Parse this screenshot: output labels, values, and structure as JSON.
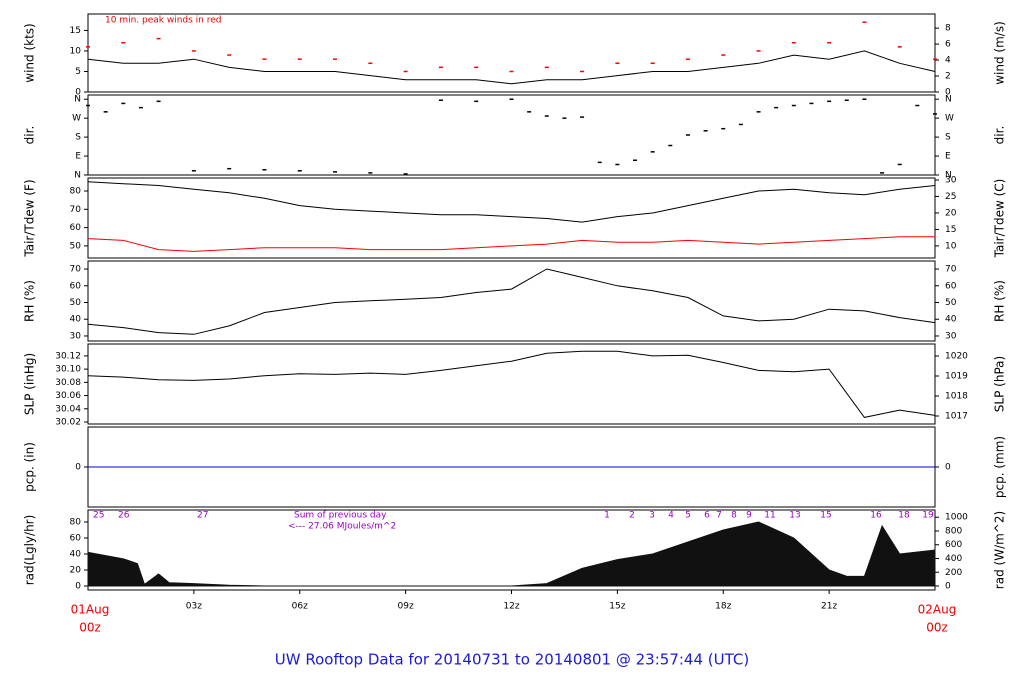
{
  "title": "UW Rooftop Data for 20140731  to  20140801 @ 23:57:44  (UTC)",
  "chart_data": [
    {
      "type": "line",
      "ylabel": "wind (kts)",
      "y2label": "wind (m/s)",
      "annotation": "10 min. peak winds in red",
      "x": [
        0,
        1,
        2,
        3,
        4,
        5,
        6,
        7,
        8,
        9,
        10,
        11,
        12,
        13,
        14,
        15,
        16,
        17,
        18,
        19,
        20,
        21,
        22,
        23,
        24
      ],
      "xlim": [
        0,
        24
      ],
      "ylim": [
        0,
        19
      ],
      "yticks": [
        0,
        5,
        10,
        15
      ],
      "y2lim": [
        0,
        9.77
      ],
      "y2ticks": [
        0,
        2,
        4,
        6,
        8
      ],
      "series": [
        {
          "color": "#000000",
          "values": [
            8,
            7,
            7,
            8,
            6,
            5,
            5,
            5,
            4,
            3,
            3,
            3,
            2,
            3,
            3,
            4,
            5,
            5,
            6,
            7,
            9,
            8,
            10,
            7,
            5
          ]
        },
        {
          "color": "#ff0000",
          "style": "dash",
          "values": [
            11,
            12,
            13,
            10,
            9,
            8,
            8,
            8,
            7,
            5,
            6,
            6,
            5,
            6,
            5,
            7,
            7,
            8,
            9,
            10,
            12,
            12,
            17,
            11,
            8
          ]
        }
      ]
    },
    {
      "type": "scatter",
      "ylabel": "dir.",
      "y2label": "dir.",
      "x": [
        0,
        0.5,
        1,
        1.5,
        2,
        3,
        4,
        5,
        6,
        7,
        8,
        9,
        10,
        11,
        12,
        12.5,
        13,
        13.5,
        14,
        14.5,
        15,
        15.5,
        16,
        16.5,
        17,
        17.5,
        18,
        18.5,
        19,
        19.5,
        20,
        20.5,
        21,
        21.5,
        22,
        22.5,
        23,
        23.5,
        24
      ],
      "xlim": [
        0,
        24
      ],
      "ylim": [
        0,
        380
      ],
      "yticks": [
        {
          "value": 0,
          "label": "N"
        },
        {
          "value": 90,
          "label": "E"
        },
        {
          "value": 180,
          "label": "S"
        },
        {
          "value": 270,
          "label": "W"
        },
        {
          "value": 360,
          "label": "N"
        }
      ],
      "y2lim": [
        0,
        380
      ],
      "y2ticks": [
        {
          "value": 0,
          "label": "N"
        },
        {
          "value": 90,
          "label": "E"
        },
        {
          "value": 180,
          "label": "S"
        },
        {
          "value": 270,
          "label": "W"
        },
        {
          "value": 360,
          "label": "N"
        }
      ],
      "series": [
        {
          "color": "#000000",
          "values": [
            330,
            300,
            340,
            320,
            350,
            20,
            30,
            25,
            20,
            15,
            10,
            5,
            355,
            350,
            360,
            300,
            280,
            270,
            275,
            60,
            50,
            70,
            110,
            140,
            190,
            210,
            220,
            240,
            300,
            320,
            330,
            340,
            350,
            355,
            360,
            10,
            50,
            330,
            290
          ]
        }
      ]
    },
    {
      "type": "line",
      "ylabel": "Tair/Tdew (F)",
      "y2label": "Tair/Tdew (C)",
      "x": [
        0,
        1,
        2,
        3,
        4,
        5,
        6,
        7,
        8,
        9,
        10,
        11,
        12,
        13,
        14,
        15,
        16,
        17,
        18,
        19,
        20,
        21,
        22,
        23,
        24
      ],
      "xlim": [
        0,
        24
      ],
      "ylim": [
        43.4,
        87.1
      ],
      "yticks": [
        50,
        60,
        70,
        80
      ],
      "y2lim": [
        6.33,
        30.6
      ],
      "y2ticks": [
        10,
        15,
        20,
        25,
        30
      ],
      "series": [
        {
          "color": "#000000",
          "values": [
            85,
            84,
            83,
            81,
            79,
            76,
            72,
            70,
            69,
            68,
            67,
            67,
            66,
            65,
            63,
            66,
            68,
            72,
            76,
            80,
            81,
            79,
            78,
            81,
            83
          ]
        },
        {
          "color": "#ff0000",
          "values": [
            54,
            53,
            48,
            47,
            48,
            49,
            49,
            49,
            48,
            48,
            48,
            49,
            50,
            51,
            53,
            52,
            52,
            53,
            52,
            51,
            52,
            53,
            54,
            55,
            55
          ]
        }
      ]
    },
    {
      "type": "line",
      "ylabel": "RH (%)",
      "y2label": "RH (%)",
      "x": [
        0,
        1,
        2,
        3,
        4,
        5,
        6,
        7,
        8,
        9,
        10,
        11,
        12,
        13,
        14,
        15,
        16,
        17,
        18,
        19,
        20,
        21,
        22,
        23,
        24
      ],
      "xlim": [
        0,
        24
      ],
      "ylim": [
        27,
        74.8
      ],
      "yticks": [
        30,
        40,
        50,
        60,
        70
      ],
      "y2lim": [
        27,
        74.8
      ],
      "y2ticks": [
        30,
        40,
        50,
        60,
        70
      ],
      "series": [
        {
          "color": "#000000",
          "values": [
            37,
            35,
            32,
            31,
            36,
            44,
            47,
            50,
            51,
            52,
            53,
            56,
            58,
            70,
            65,
            60,
            57,
            53,
            42,
            39,
            40,
            46,
            45,
            41,
            38
          ]
        }
      ]
    },
    {
      "type": "line",
      "ylabel": "SLP (inHg)",
      "y2label": "SLP (hPa)",
      "x": [
        0,
        1,
        2,
        3,
        4,
        5,
        6,
        7,
        8,
        9,
        10,
        11,
        12,
        13,
        14,
        15,
        16,
        17,
        18,
        19,
        20,
        21,
        22,
        23,
        24
      ],
      "xlim": [
        0,
        24
      ],
      "ylim": [
        30.017,
        30.138
      ],
      "yticks": [
        {
          "value": 30.02,
          "label": "30.02"
        },
        30.04,
        30.06,
        30.08,
        {
          "value": 30.1,
          "label": "30.10"
        },
        30.12
      ],
      "y2lim": [
        1016.6,
        1020.6
      ],
      "y2ticks": [
        1017,
        1018,
        1019,
        1020
      ],
      "series": [
        {
          "color": "#000000",
          "values": [
            30.09,
            30.088,
            30.084,
            30.083,
            30.085,
            30.09,
            30.093,
            30.092,
            30.094,
            30.092,
            30.098,
            30.105,
            30.112,
            30.124,
            30.127,
            30.127,
            30.12,
            30.121,
            30.11,
            30.098,
            30.096,
            30.1,
            30.027,
            30.038,
            30.03
          ]
        }
      ]
    },
    {
      "type": "line",
      "ylabel": "pcp. (in)",
      "y2label": "pcp. (mm)",
      "x": [
        0,
        24
      ],
      "xlim": [
        0,
        24
      ],
      "ylim": [
        -1,
        1
      ],
      "yticks": [
        0
      ],
      "y2lim": [
        -1,
        1
      ],
      "y2ticks": [
        0
      ],
      "series": [
        {
          "color": "#0000cc",
          "values": [
            0,
            0
          ]
        }
      ]
    },
    {
      "type": "area",
      "ylabel": "rad(Lgly/hr)",
      "y2label": "rad (W/m^2)",
      "day_labels": [
        "25",
        "26",
        "27"
      ],
      "sum_text": [
        "Sum of previous day",
        "<--- 27.06 MJoules/m^2"
      ],
      "hour_labels": [
        "1",
        "2",
        "3",
        "4",
        "5",
        "6",
        "7",
        "8",
        "9",
        "11",
        "13",
        "15",
        "16",
        "18",
        "19"
      ],
      "x": [
        0,
        1,
        1.4,
        1.6,
        2,
        2.3,
        3,
        4,
        5,
        6,
        7,
        8,
        9,
        10,
        11,
        12,
        13,
        14,
        15,
        16,
        17,
        18,
        19,
        20,
        21,
        21.5,
        22,
        22.5,
        23,
        24
      ],
      "xlim": [
        0,
        24
      ],
      "ylim": [
        -5,
        95
      ],
      "yticks": [
        0,
        20,
        40,
        60,
        80
      ],
      "y2lim": [
        -58,
        1105
      ],
      "y2ticks": [
        0,
        200,
        400,
        600,
        800,
        1000
      ],
      "xticks": [
        {
          "value": 3,
          "label": "03z"
        },
        {
          "value": 6,
          "label": "06z"
        },
        {
          "value": 9,
          "label": "09z"
        },
        {
          "value": 12,
          "label": "12z"
        },
        {
          "value": 15,
          "label": "15z"
        },
        {
          "value": 18,
          "label": "18z"
        },
        {
          "value": 21,
          "label": "21z"
        }
      ],
      "start_label": [
        "01Aug",
        "00z"
      ],
      "end_label": [
        "02Aug",
        "00z"
      ],
      "series": [
        {
          "color": "#111111",
          "values": [
            42,
            34,
            28,
            2,
            15,
            4,
            3,
            1,
            0,
            0,
            0,
            0,
            0,
            0,
            0,
            0,
            3,
            22,
            33,
            40,
            55,
            70,
            80,
            60,
            20,
            12,
            12,
            75,
            40,
            45
          ]
        }
      ]
    }
  ]
}
